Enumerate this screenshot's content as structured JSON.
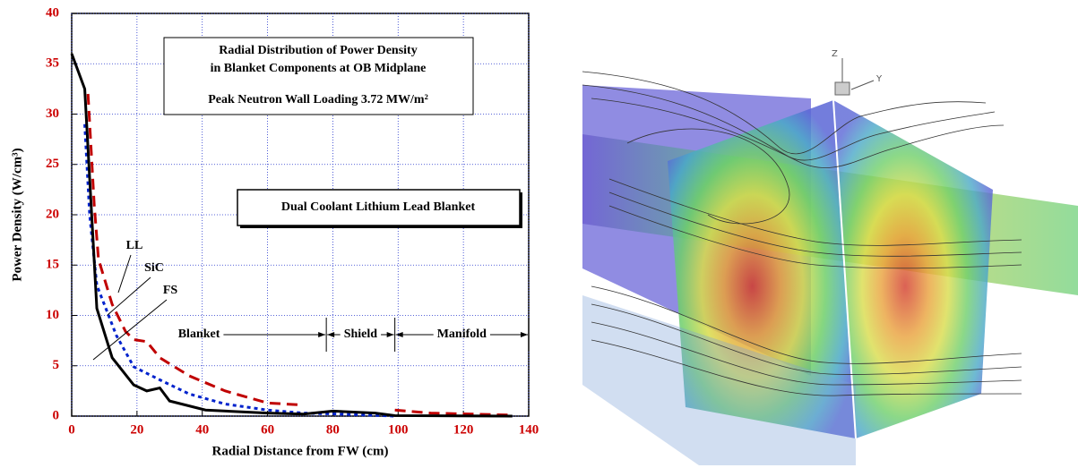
{
  "chart_data": {
    "type": "line",
    "title": [
      "Radial Distribution of Power Density",
      "in Blanket Components at OB Midplane"
    ],
    "subtitle": "Peak Neutron Wall Loading 3.72 MW/m²",
    "annotation": "Dual Coolant Lithium Lead Blanket",
    "xlabel": "Radial Distance from FW (cm)",
    "ylabel": "Power Density (W/cm³)",
    "xlim": [
      0,
      140
    ],
    "ylim": [
      0,
      40
    ],
    "xticks": [
      0,
      20,
      40,
      60,
      80,
      100,
      120,
      140
    ],
    "yticks": [
      0,
      5,
      10,
      15,
      20,
      25,
      30,
      35,
      40
    ],
    "grid": true,
    "grid_color": "#2233cc",
    "tick_label_color": "#cc0000",
    "regions": [
      {
        "label": "Blanket",
        "end": 78
      },
      {
        "label": "Shield",
        "end": 99
      },
      {
        "label": "Manifold",
        "end": 140
      }
    ],
    "series": [
      {
        "name": "LL",
        "color": "#c00000",
        "dash": "dashed",
        "x": [
          5,
          6.9,
          8.2,
          12.4,
          16.5,
          19,
          23,
          27,
          36,
          47,
          60,
          71,
          85,
          99,
          110,
          135
        ],
        "values": [
          32,
          21,
          15.6,
          11.1,
          8.4,
          7.6,
          7.4,
          5.8,
          4,
          2.5,
          1.3,
          1.1,
          null,
          0.6,
          0.3,
          0.1
        ]
      },
      {
        "name": "SiC",
        "color": "#0022cc",
        "dash": "dotted",
        "x": [
          4,
          5.5,
          7.7,
          13.7,
          19,
          27,
          36,
          47,
          60,
          71,
          82,
          99
        ],
        "values": [
          29,
          20,
          13,
          8,
          4.9,
          3.6,
          2.2,
          1.2,
          0.6,
          0.3,
          0.2,
          0
        ]
      },
      {
        "name": "FS",
        "color": "#000000",
        "dash": "solid",
        "x": [
          0,
          4,
          7.7,
          12.4,
          19,
          23,
          27,
          30,
          41,
          60,
          71,
          80,
          93,
          99,
          135
        ],
        "values": [
          36,
          32.5,
          10.7,
          5.8,
          3.1,
          2.5,
          2.8,
          1.5,
          0.6,
          0.3,
          0.2,
          0.5,
          0.3,
          0.05,
          0
        ]
      }
    ]
  },
  "figure": {
    "axis_labels": [
      "Z",
      "Y"
    ]
  }
}
